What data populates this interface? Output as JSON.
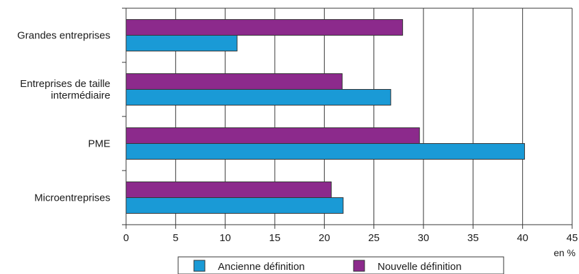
{
  "chart_data": {
    "type": "bar",
    "orientation": "horizontal",
    "categories": [
      [
        "Grandes entreprises"
      ],
      [
        "Entreprises de taille",
        "intermédiaire"
      ],
      [
        "PME"
      ],
      [
        "Microentreprises"
      ]
    ],
    "series": [
      {
        "name": "Nouvelle définition",
        "color": "#8c2a8c",
        "values": [
          27.9,
          21.8,
          29.6,
          20.7
        ]
      },
      {
        "name": "Ancienne définition",
        "color": "#1a9ad6",
        "values": [
          11.2,
          26.7,
          40.2,
          21.9
        ]
      }
    ],
    "xlim": [
      0,
      45
    ],
    "xticks": [
      0,
      5,
      10,
      15,
      20,
      25,
      30,
      35,
      40,
      45
    ],
    "xunit": "en %",
    "grid": "vertical",
    "legend": {
      "position": "bottom",
      "items": [
        {
          "label": "Ancienne définition",
          "color": "#1a9ad6"
        },
        {
          "label": "Nouvelle définition",
          "color": "#8c2a8c"
        }
      ]
    }
  }
}
